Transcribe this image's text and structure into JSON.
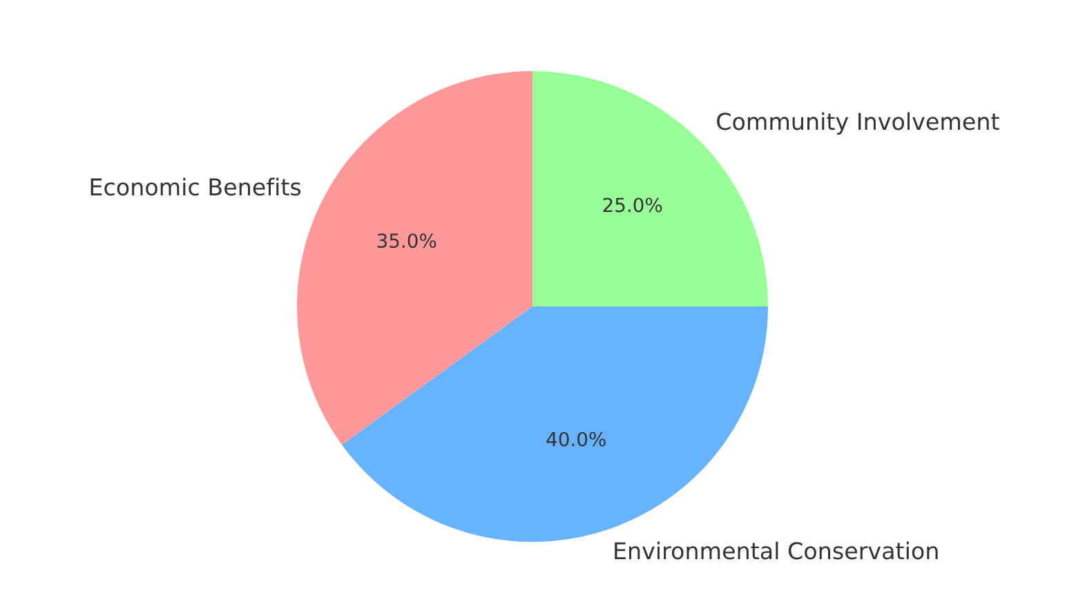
{
  "chart_data": {
    "type": "pie",
    "categories": [
      "Economic Benefits",
      "Environmental Conservation",
      "Community Involvement"
    ],
    "values": [
      35,
      40,
      25
    ],
    "colors": [
      "#ff9999",
      "#66b3ff",
      "#99ff99"
    ],
    "value_labels": [
      "35.0%",
      "40.0%",
      "25.0%"
    ]
  }
}
